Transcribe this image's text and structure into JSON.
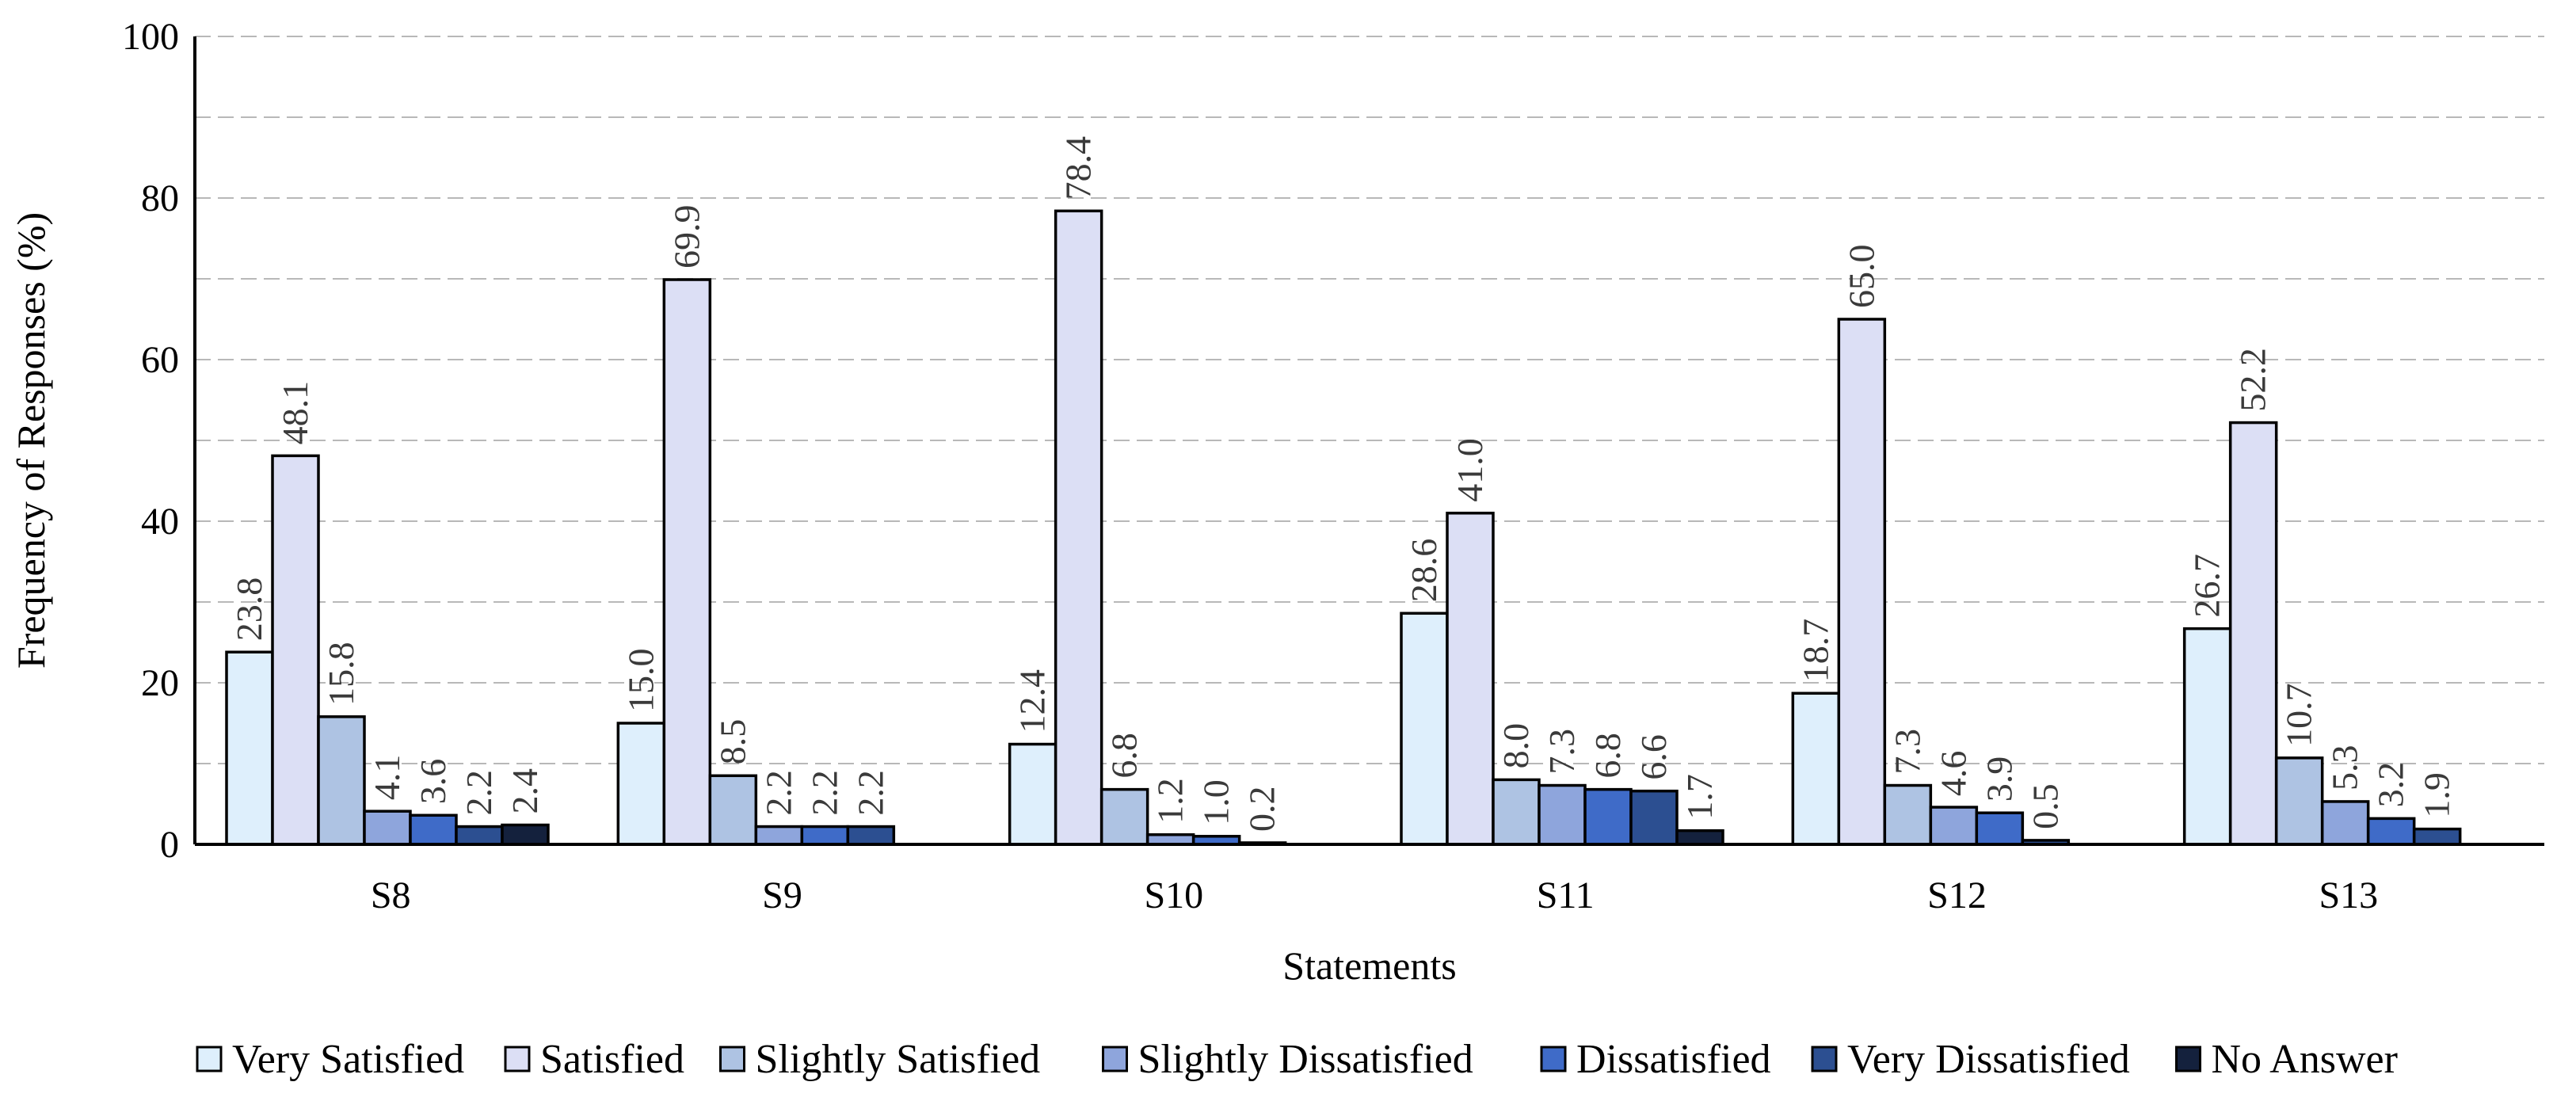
{
  "chart_data": {
    "type": "bar",
    "title": "",
    "xlabel": "Statements",
    "ylabel": "Frequency of Responses (%)",
    "ylim": [
      0,
      100
    ],
    "yticks": [
      0,
      20,
      40,
      60,
      80,
      100
    ],
    "grid": true,
    "legend_position": "bottom",
    "categories": [
      "S8",
      "S9",
      "S10",
      "S11",
      "S12",
      "S13"
    ],
    "series": [
      {
        "name": "Very Satisfied",
        "color": "#deeffc",
        "values": [
          23.8,
          15.0,
          12.4,
          28.6,
          18.7,
          26.7
        ],
        "labels": [
          "23.8",
          "15.0",
          "12.4",
          "28.6",
          "18.7",
          "26.7"
        ]
      },
      {
        "name": "Satisfied",
        "color": "#dcdff5",
        "values": [
          48.1,
          69.9,
          78.4,
          41.0,
          65.0,
          52.2
        ],
        "labels": [
          "48.1",
          "69.9",
          "78.4",
          "41.0",
          "65.0",
          "52.2"
        ]
      },
      {
        "name": "Slightly Satisfied",
        "color": "#aec3e3",
        "values": [
          15.8,
          8.5,
          6.8,
          8.0,
          7.3,
          10.7
        ],
        "labels": [
          "15.8",
          "8.5",
          "6.8",
          "8.0",
          "7.3",
          "10.7"
        ]
      },
      {
        "name": "Slightly Dissatisfied",
        "color": "#8ea5dc",
        "values": [
          4.1,
          2.2,
          1.2,
          7.3,
          4.6,
          5.3
        ],
        "labels": [
          "4.1",
          "2.2",
          "1.2",
          "7.3",
          "4.6",
          "5.3"
        ]
      },
      {
        "name": "Dissatisfied",
        "color": "#3f6bc8",
        "values": [
          3.6,
          2.2,
          1.0,
          6.8,
          3.9,
          3.2
        ],
        "labels": [
          "3.6",
          "2.2",
          "1.0",
          "6.8",
          "3.9",
          "3.2"
        ]
      },
      {
        "name": "Very Dissatisfied",
        "color": "#2c4f91",
        "values": [
          2.2,
          2.2,
          0.2,
          6.6,
          0.5,
          1.9
        ],
        "labels": [
          "2.2",
          "2.2",
          "0.2",
          "6.6",
          "0.5",
          "1.9"
        ]
      },
      {
        "name": "No Answer",
        "color": "#14213d",
        "values": [
          2.4,
          null,
          null,
          1.7,
          null,
          null
        ],
        "labels": [
          "2.4",
          null,
          null,
          "1.7",
          null,
          null
        ]
      }
    ]
  }
}
